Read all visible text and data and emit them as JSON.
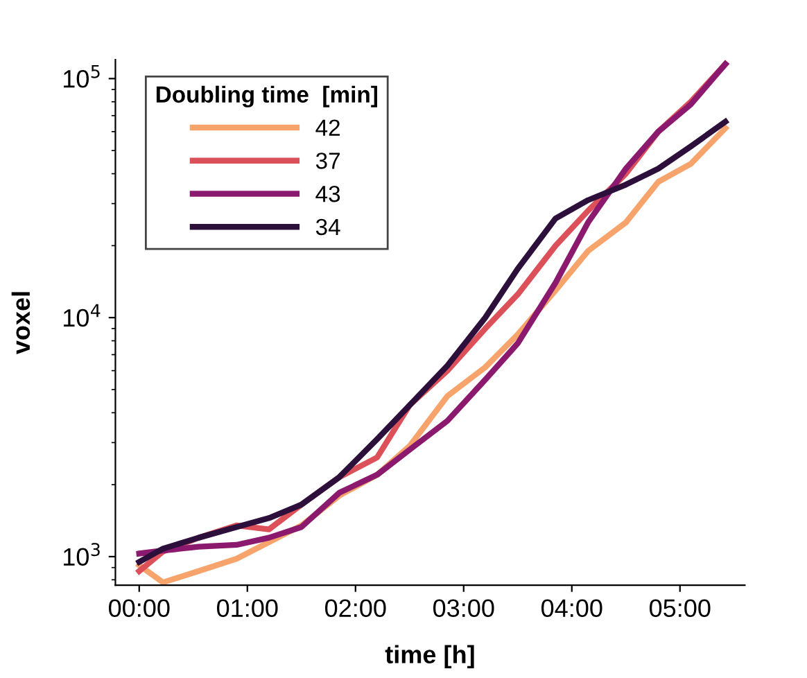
{
  "chart_data": {
    "type": "line",
    "xlabel": "time [h]",
    "ylabel": "voxel",
    "legend_title": "Doubling time  [min]",
    "legend": "top left",
    "log": "y",
    "grid": false,
    "marker": "none",
    "line_style": "solid",
    "x": [
      0,
      0.22,
      0.55,
      0.9,
      1.2,
      1.5,
      1.85,
      2.2,
      2.5,
      2.85,
      3.2,
      3.5,
      3.85,
      4.15,
      4.5,
      4.8,
      5.1,
      5.42
    ],
    "series": [
      {
        "name": "42",
        "color": "#f7a36c",
        "values": [
          920,
          780,
          870,
          980,
          1150,
          1350,
          1800,
          2200,
          2900,
          4700,
          6200,
          8500,
          13000,
          19000,
          25000,
          37000,
          44000,
          62000
        ]
      },
      {
        "name": "37",
        "color": "#dc505a",
        "values": [
          870,
          1050,
          1200,
          1350,
          1300,
          1650,
          2150,
          2600,
          4300,
          6000,
          9000,
          12500,
          20000,
          28000,
          40000,
          60000,
          80000,
          115000
        ]
      },
      {
        "name": "43",
        "color": "#8b1a6e",
        "values": [
          1030,
          1060,
          1100,
          1120,
          1200,
          1330,
          1850,
          2200,
          2800,
          3700,
          5500,
          7800,
          14000,
          25000,
          42000,
          60000,
          78000,
          115000
        ]
      },
      {
        "name": "34",
        "color": "#2c0f3b",
        "values": [
          950,
          1080,
          1200,
          1330,
          1450,
          1650,
          2150,
          3100,
          4300,
          6300,
          10000,
          16000,
          26000,
          31000,
          36000,
          42000,
          52000,
          66000
        ]
      }
    ],
    "xlim": [
      -0.22,
      5.6
    ],
    "xticks": [
      {
        "value": 0,
        "label": "00:00"
      },
      {
        "value": 1,
        "label": "01:00"
      },
      {
        "value": 2,
        "label": "02:00"
      },
      {
        "value": 3,
        "label": "03:00"
      },
      {
        "value": 4,
        "label": "04:00"
      },
      {
        "value": 5,
        "label": "05:00"
      }
    ],
    "ylim": [
      760,
      120000
    ],
    "yticks": [
      {
        "value": 1000,
        "label": "10$^{3}$"
      },
      {
        "value": 10000,
        "label": "10$^{4}$"
      },
      {
        "value": 100000,
        "label": "10$^{5}$"
      }
    ]
  }
}
